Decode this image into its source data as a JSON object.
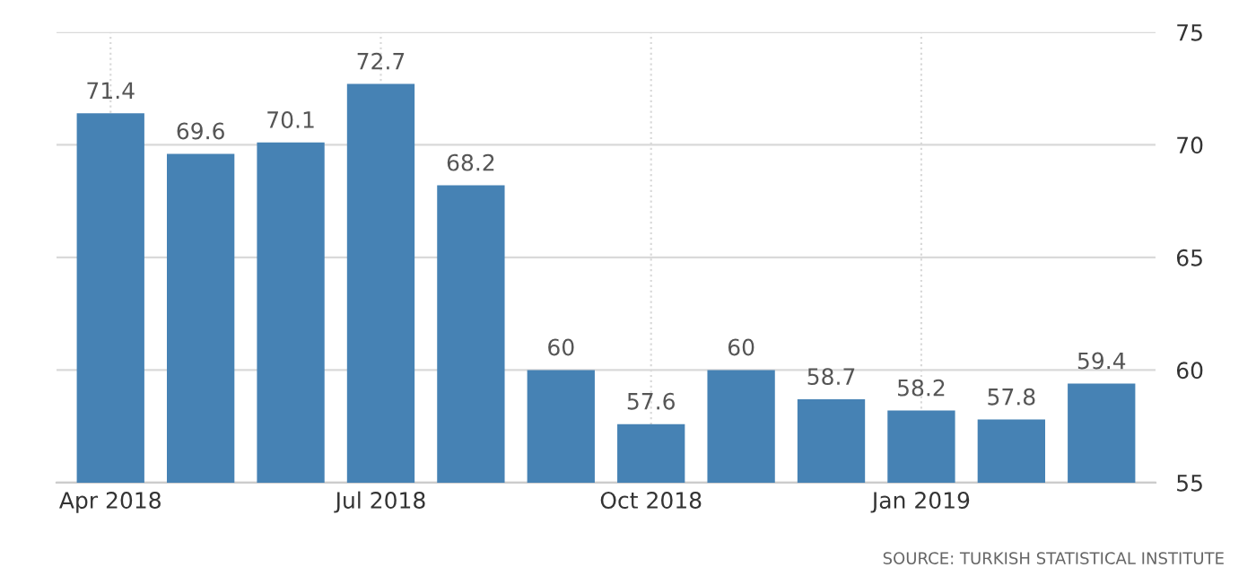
{
  "chart_data": {
    "type": "bar",
    "categories": [
      "Apr 2018",
      null,
      null,
      "Jul 2018",
      null,
      null,
      "Oct 2018",
      null,
      null,
      "Jan 2019",
      null,
      null
    ],
    "values": [
      71.4,
      69.6,
      70.1,
      72.7,
      68.2,
      60,
      57.6,
      60,
      58.7,
      58.2,
      57.8,
      59.4
    ],
    "color": "#4682b4",
    "ylim": [
      55,
      75
    ],
    "yticks": [
      55,
      60,
      65,
      70,
      75
    ],
    "grid": true,
    "data_labels": true,
    "annotations": [
      "SOURCE: TURKISH STATISTICAL INSTITUTE"
    ]
  }
}
